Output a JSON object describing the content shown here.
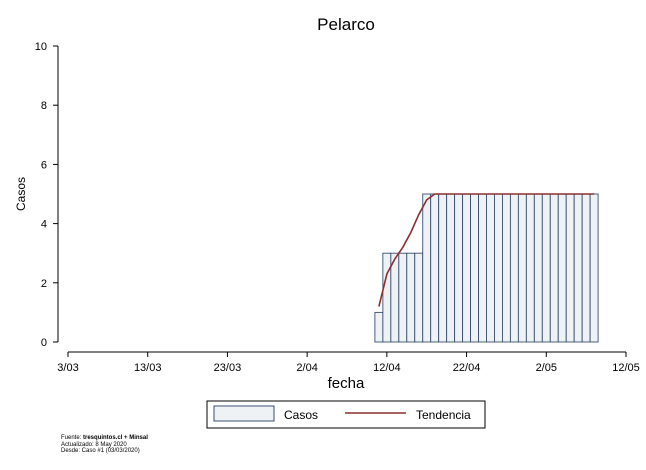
{
  "chart_data": {
    "type": "bar",
    "title": "Pelarco",
    "xlabel": "fecha",
    "ylabel": "Casos",
    "ylim": [
      0,
      10
    ],
    "yticks": [
      0,
      2,
      4,
      6,
      8,
      10
    ],
    "xticks": [
      "3/03",
      "13/03",
      "23/03",
      "2/04",
      "12/04",
      "22/04",
      "2/05",
      "12/05"
    ],
    "x_range": [
      "2020-03-03",
      "2020-05-12"
    ],
    "legend_position": "bottom",
    "grid": false,
    "series": [
      {
        "name": "Casos",
        "kind": "bar",
        "color": "#eef2f5",
        "edge_color": "#3a4f73",
        "x": [
          "2020-04-11",
          "2020-04-12",
          "2020-04-13",
          "2020-04-14",
          "2020-04-15",
          "2020-04-16",
          "2020-04-17",
          "2020-04-18",
          "2020-04-19",
          "2020-04-20",
          "2020-04-21",
          "2020-04-22",
          "2020-04-23",
          "2020-04-24",
          "2020-04-25",
          "2020-04-26",
          "2020-04-27",
          "2020-04-28",
          "2020-04-29",
          "2020-04-30",
          "2020-05-01",
          "2020-05-02",
          "2020-05-03",
          "2020-05-04",
          "2020-05-05",
          "2020-05-06",
          "2020-05-07",
          "2020-05-08"
        ],
        "values": [
          1,
          3,
          3,
          3,
          3,
          3,
          5,
          5,
          5,
          5,
          5,
          5,
          5,
          5,
          5,
          5,
          5,
          5,
          5,
          5,
          5,
          5,
          5,
          5,
          5,
          5,
          5,
          5
        ]
      },
      {
        "name": "Tendencia",
        "kind": "line",
        "color": "#8b2e2e",
        "x": [
          "2020-04-11",
          "2020-04-12",
          "2020-04-13",
          "2020-04-14",
          "2020-04-15",
          "2020-04-16",
          "2020-04-17",
          "2020-04-18",
          "2020-04-19",
          "2020-04-20",
          "2020-04-21",
          "2020-04-22",
          "2020-04-23",
          "2020-04-24",
          "2020-04-25",
          "2020-04-26",
          "2020-04-27",
          "2020-04-28",
          "2020-04-29",
          "2020-04-30",
          "2020-05-01",
          "2020-05-02",
          "2020-05-03",
          "2020-05-04",
          "2020-05-05",
          "2020-05-06",
          "2020-05-07",
          "2020-05-08"
        ],
        "values": [
          1.2,
          2.3,
          2.8,
          3.2,
          3.7,
          4.3,
          4.8,
          5,
          5,
          5,
          5,
          5,
          5,
          5,
          5,
          5,
          5,
          5,
          5,
          5,
          5,
          5,
          5,
          5,
          5,
          5,
          5,
          5
        ]
      }
    ]
  },
  "source": {
    "line1_prefix": "Fuente: ",
    "line1_bold": "tresquintos.cl + Minsal",
    "line2": "Actualizado: 8 May 2020",
    "line3": "Desde: Caso #1  (03/03/2020)"
  }
}
